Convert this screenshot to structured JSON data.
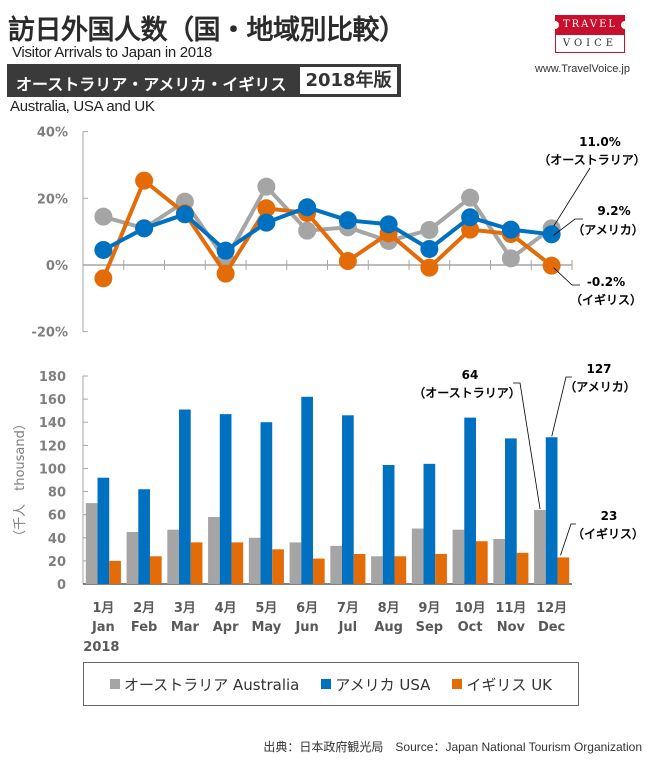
{
  "header": {
    "title": "訪日外国人数（国・地域別比較）",
    "title_en": "Visitor Arrivals to Japan in 2018",
    "banner_text": "オーストラリア・アメリカ・イギリス",
    "banner_badge": "2018年版",
    "subtitle_en": "Australia, USA and UK"
  },
  "logo": {
    "top_text": "TRAVEL",
    "bottom_text": "VOICE",
    "url": "www.TravelVoice.jp",
    "brand_color": "#c8102e"
  },
  "colors": {
    "australia": "#a5a5a5",
    "usa": "#0070c0",
    "uk": "#e36c09",
    "axis": "#a6a6a6",
    "tick_label": "#7f7f7f"
  },
  "legend": {
    "items": [
      {
        "label": "オーストラリア Australia",
        "series": "australia"
      },
      {
        "label": "アメリカ USA",
        "series": "usa"
      },
      {
        "label": "イギリス UK",
        "series": "uk"
      }
    ]
  },
  "source": "出典：日本政府観光局　Source：Japan  National Tourism  Organization",
  "chart_data": [
    {
      "type": "line",
      "title": "Year-over-year change",
      "categories": [
        "Jan",
        "Feb",
        "Mar",
        "Apr",
        "May",
        "Jun",
        "Jul",
        "Aug",
        "Sep",
        "Oct",
        "Nov",
        "Dec"
      ],
      "ylim": [
        -20,
        40
      ],
      "yticks": [
        -20,
        0,
        20,
        40
      ],
      "ytick_labels": [
        "-20%",
        "0%",
        "20%",
        "40%"
      ],
      "grid": false,
      "series": [
        {
          "name": "オーストラリア Australia",
          "key": "australia",
          "values": [
            14.5,
            11.0,
            19.0,
            1.5,
            23.5,
            10.3,
            11.3,
            7.2,
            10.5,
            20.2,
            2.0,
            11.0
          ]
        },
        {
          "name": "アメリカ USA",
          "key": "usa",
          "values": [
            4.5,
            11.0,
            15.2,
            4.3,
            12.7,
            17.3,
            13.4,
            12.2,
            4.8,
            14.3,
            10.6,
            9.2
          ]
        },
        {
          "name": "イギリス UK",
          "key": "uk",
          "values": [
            -4.0,
            25.3,
            15.5,
            -2.6,
            17.0,
            15.6,
            1.2,
            9.5,
            -0.8,
            10.6,
            9.3,
            -0.2
          ]
        }
      ],
      "annotations": [
        {
          "series": "australia",
          "value_text": "11.0%",
          "label_text": "（オーストラリア）"
        },
        {
          "series": "usa",
          "value_text": "9.2%",
          "label_text": "（アメリカ）"
        },
        {
          "series": "uk",
          "value_text": "-0.2%",
          "label_text": "（イギリス）"
        }
      ]
    },
    {
      "type": "bar",
      "title": "Visitor arrivals by month",
      "ylabel": "（千人　thousand）",
      "categories": [
        "Jan",
        "Feb",
        "Mar",
        "Apr",
        "May",
        "Jun",
        "Jul",
        "Aug",
        "Sep",
        "Oct",
        "Nov",
        "Dec"
      ],
      "category_labels_ja": [
        "1月",
        "2月",
        "3月",
        "4月",
        "5月",
        "6月",
        "7月",
        "8月",
        "9月",
        "10月",
        "11月",
        "12月"
      ],
      "category_labels_en": [
        "Jan",
        "Feb",
        "Mar",
        "Apr",
        "May",
        "Jun",
        "Jul",
        "Aug",
        "Sep",
        "Oct",
        "Nov",
        "Dec"
      ],
      "year_label": "2018",
      "ylim": [
        0,
        180
      ],
      "yticks": [
        0,
        20,
        40,
        60,
        80,
        100,
        120,
        140,
        160,
        180
      ],
      "grid": false,
      "series": [
        {
          "name": "オーストラリア Australia",
          "key": "australia",
          "values": [
            70,
            45,
            47,
            58,
            40,
            36,
            33,
            24,
            48,
            47,
            39,
            64
          ]
        },
        {
          "name": "アメリカ USA",
          "key": "usa",
          "values": [
            92,
            82,
            151,
            147,
            140,
            162,
            146,
            103,
            104,
            144,
            126,
            127
          ]
        },
        {
          "name": "イギリス UK",
          "key": "uk",
          "values": [
            20,
            24,
            36,
            36,
            30,
            22,
            26,
            24,
            26,
            37,
            27,
            23
          ]
        }
      ],
      "annotations": [
        {
          "series": "australia",
          "value_text": "64",
          "label_text": "（オーストラリア）"
        },
        {
          "series": "usa",
          "value_text": "127",
          "label_text": "（アメリカ）"
        },
        {
          "series": "uk",
          "value_text": "23",
          "label_text": "（イギリス）"
        }
      ]
    }
  ]
}
